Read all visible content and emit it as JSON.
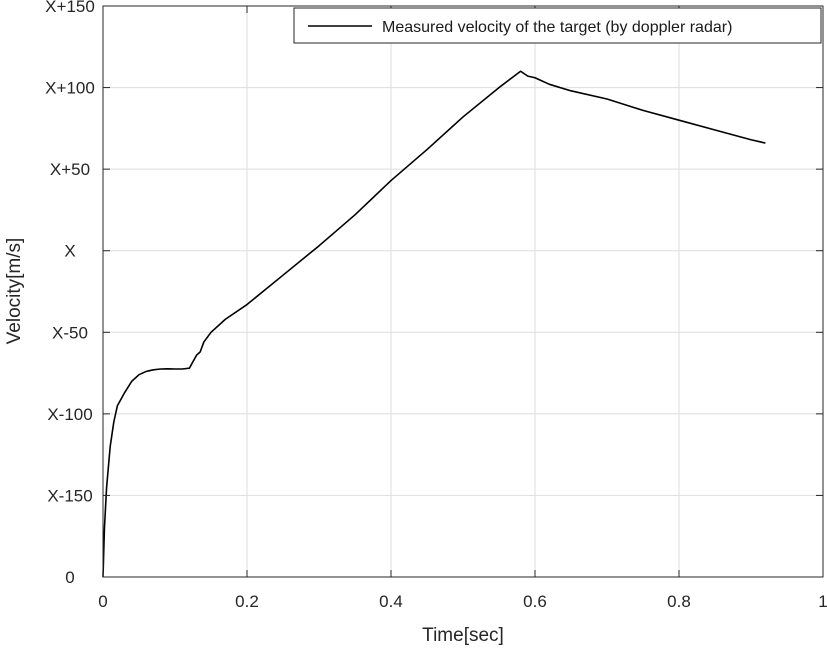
{
  "chart_data": {
    "type": "line",
    "xlabel": "Time[sec]",
    "ylabel": "Velocity[m/s]",
    "xlim": [
      0,
      1
    ],
    "ylim": [
      0,
      300
    ],
    "x_ticks": [
      {
        "value": 0,
        "label": "0"
      },
      {
        "value": 0.2,
        "label": "0.2"
      },
      {
        "value": 0.4,
        "label": "0.4"
      },
      {
        "value": 0.6,
        "label": "0.6"
      },
      {
        "value": 0.8,
        "label": "0.8"
      },
      {
        "value": 1,
        "label": "1"
      }
    ],
    "y_ticks": [
      {
        "value": 0,
        "label": "0"
      },
      {
        "value": 50,
        "label": "X-150"
      },
      {
        "value": 100,
        "label": "X-100"
      },
      {
        "value": 150,
        "label": "X-50"
      },
      {
        "value": 200,
        "label": "X"
      },
      {
        "value": 250,
        "label": "X+50"
      },
      {
        "value": 300,
        "label": "X+100"
      },
      {
        "value": 350,
        "label": "X+150"
      }
    ],
    "grid": true,
    "legend_position": "top-right",
    "series": [
      {
        "name": "Measured velocity of the target (by doppler radar)",
        "color": "#000000",
        "x": [
          0,
          0.002,
          0.005,
          0.01,
          0.015,
          0.02,
          0.03,
          0.04,
          0.05,
          0.06,
          0.07,
          0.08,
          0.09,
          0.1,
          0.11,
          0.12,
          0.125,
          0.13,
          0.135,
          0.14,
          0.15,
          0.17,
          0.2,
          0.25,
          0.3,
          0.35,
          0.4,
          0.45,
          0.5,
          0.55,
          0.58,
          0.59,
          0.6,
          0.62,
          0.65,
          0.7,
          0.75,
          0.8,
          0.85,
          0.9,
          0.92
        ],
        "y": [
          0,
          30,
          55,
          80,
          95,
          105,
          113,
          120,
          124,
          126,
          127,
          127.5,
          127.6,
          127.5,
          127.5,
          128,
          132,
          136,
          138,
          144,
          150,
          158,
          167,
          185,
          203,
          222,
          243,
          262,
          282,
          300,
          310,
          307,
          306,
          302,
          298,
          293,
          286,
          280,
          274,
          268,
          266
        ]
      }
    ]
  }
}
